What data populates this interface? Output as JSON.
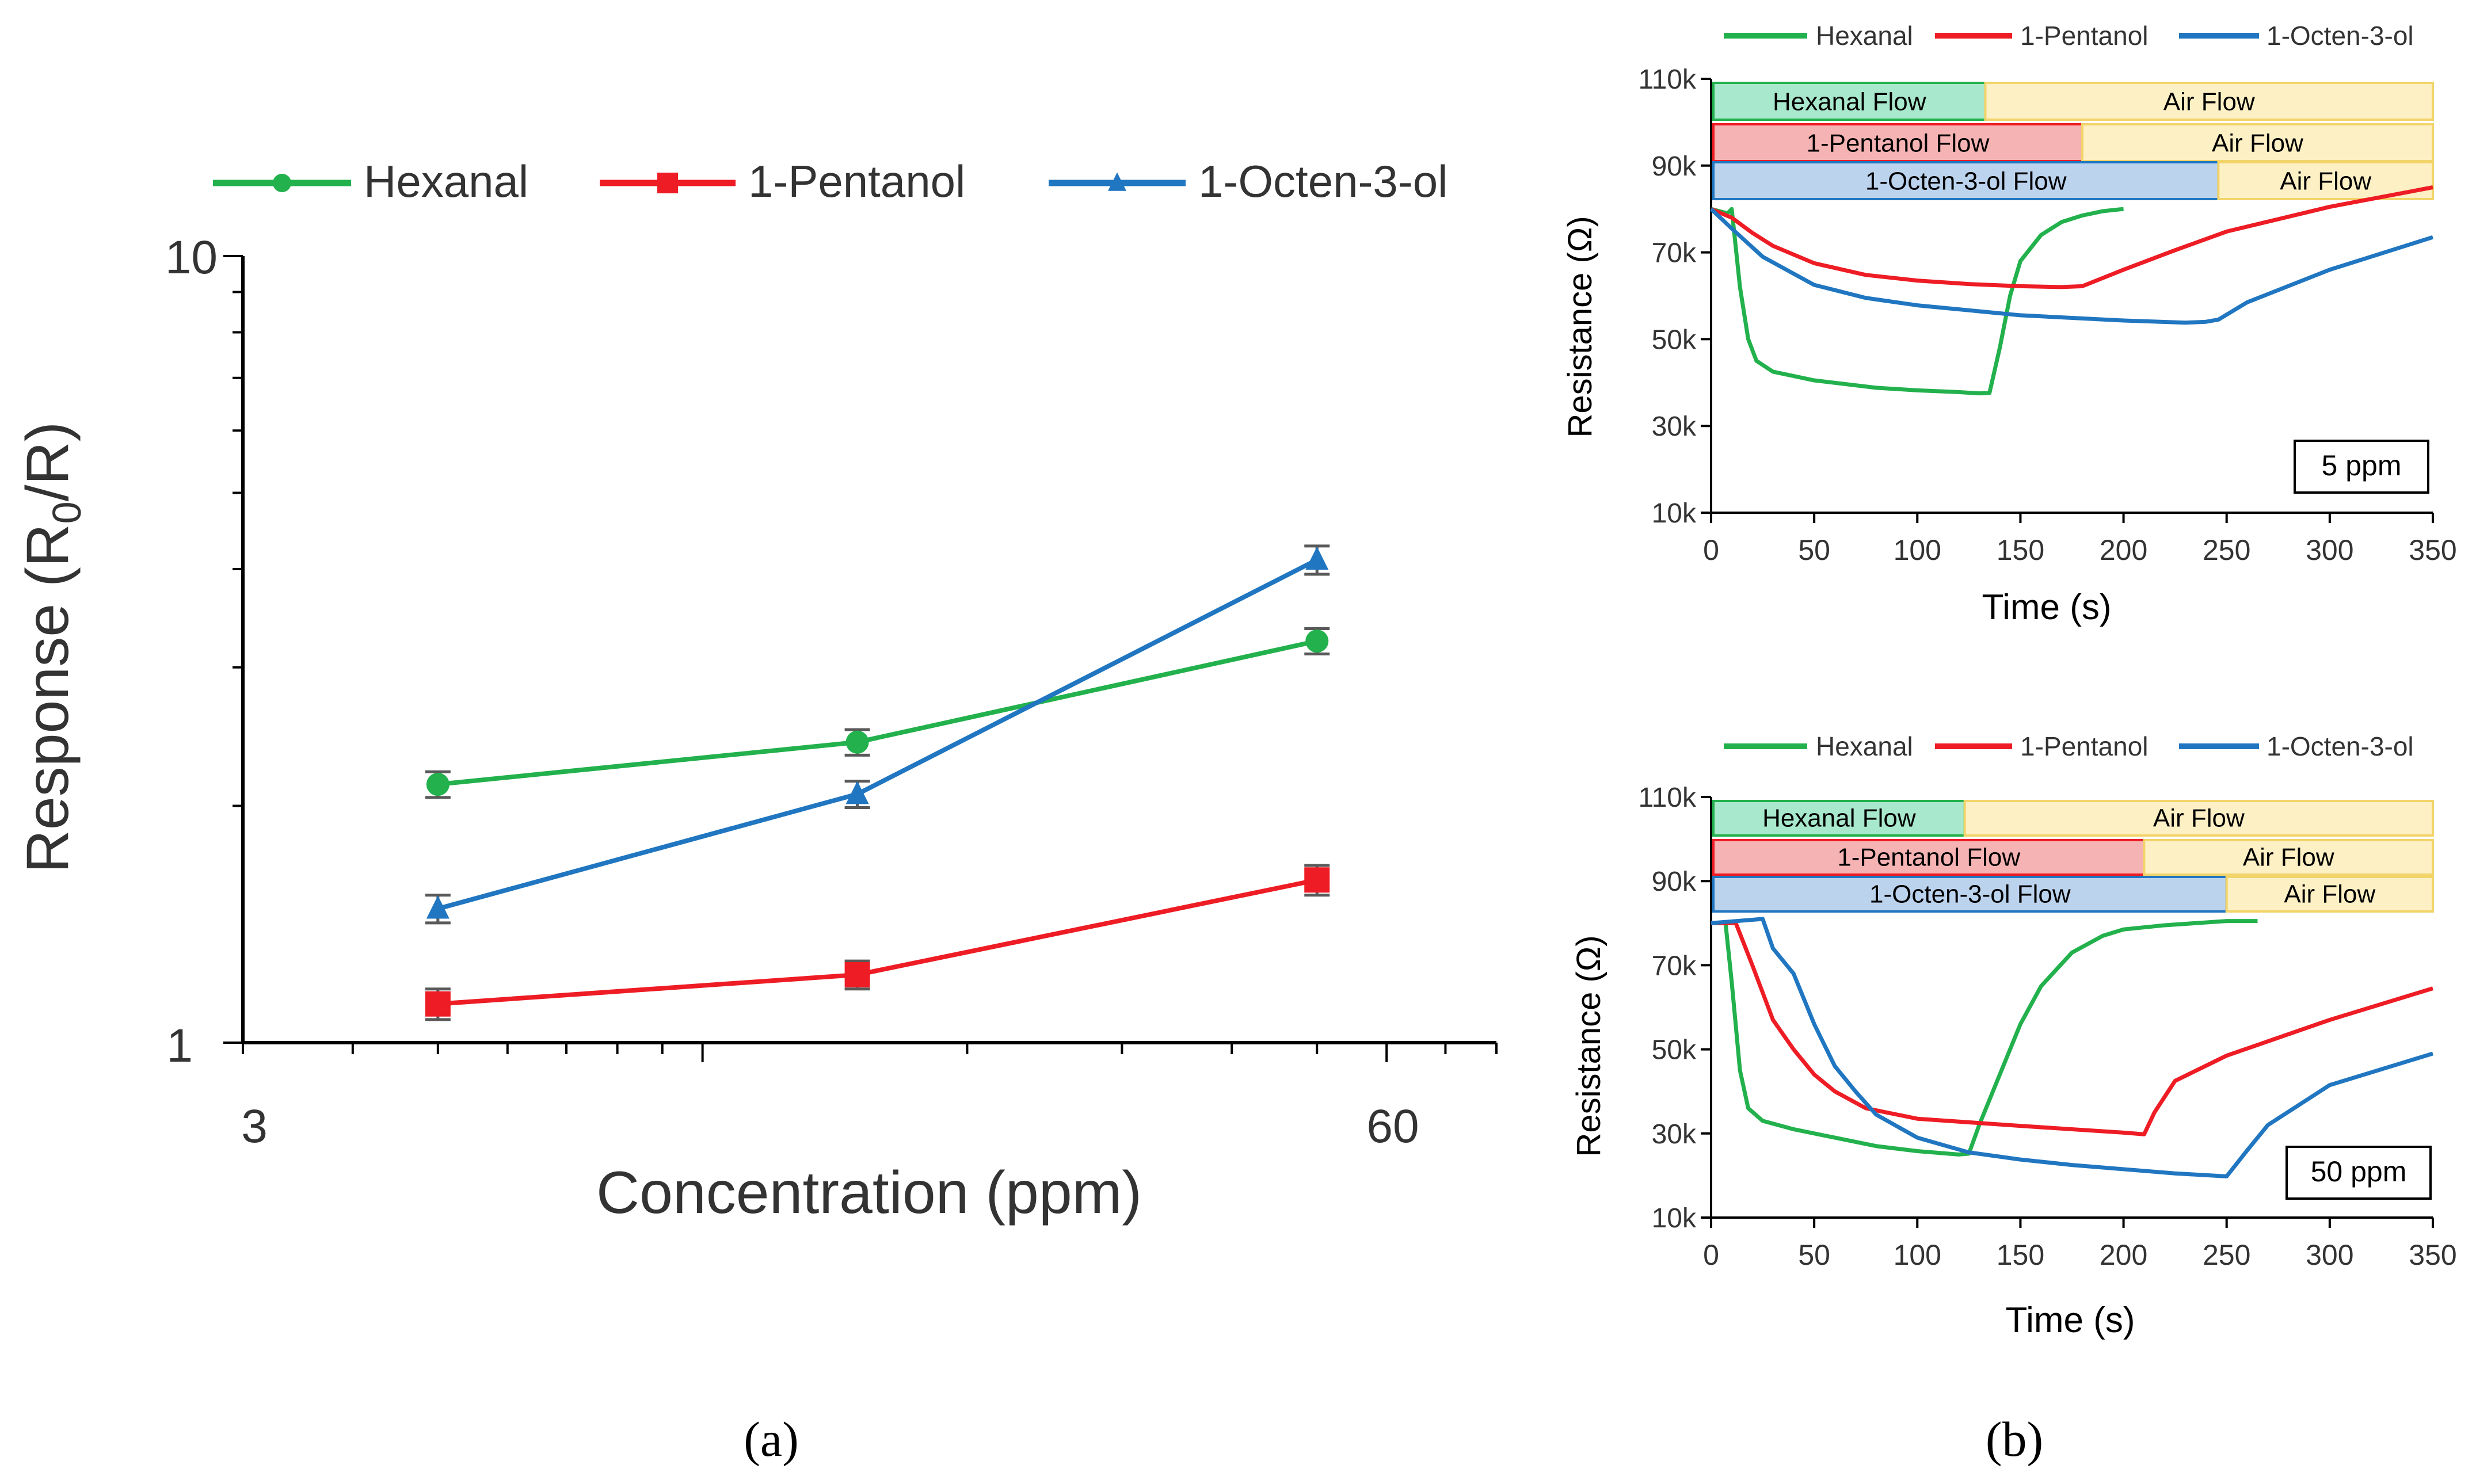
{
  "colors": {
    "hexanal": "#22b14c",
    "pentanol": "#ee1c24",
    "octenol": "#2076c0",
    "errorbar": "#595959",
    "flow_hexanal_fill": "#a8e8cc",
    "flow_pentanol_fill": "#f6b3b3",
    "flow_octenol_fill": "#bcd3ee",
    "air_fill": "#fdf0c4",
    "air_stroke": "#f2d46a"
  },
  "panel_a": {
    "caption": "(a)",
    "legend": [
      "Hexanal",
      "1-Pentanol",
      "1-Octen-3-ol"
    ],
    "ylabel_main": "Response (R",
    "ylabel_sub": "0",
    "ylabel_tail": "/R)",
    "xlabel": "Concentration (ppm)",
    "ytick_labels": [
      "10",
      "1"
    ],
    "xtick_labels": [
      "3",
      "60"
    ]
  },
  "panel_b": {
    "caption": "(b)",
    "legend": [
      "Hexanal",
      "1-Pentanol",
      "1-Octen-3-ol"
    ],
    "ylabel": "Resistance (Ω)",
    "xlabel": "Time (s)",
    "ytick_labels": [
      "110k",
      "90k",
      "70k",
      "50k",
      "30k",
      "10k"
    ],
    "xtick_labels": [
      "0",
      "50",
      "100",
      "150",
      "200",
      "250",
      "300",
      "350"
    ],
    "top": {
      "badge": "5 ppm",
      "flow_labels": [
        "Hexanal Flow",
        "1-Pentanol Flow",
        "1-Octen-3-ol Flow"
      ],
      "air_label": "Air Flow"
    },
    "bottom": {
      "badge": "50 ppm",
      "flow_labels": [
        "Hexanal Flow",
        "1-Pentanol Flow",
        "1-Octen-3-ol Flow"
      ],
      "air_label": "Air Flow"
    }
  },
  "chart_data": [
    {
      "id": "a",
      "type": "line",
      "title": "",
      "xlabel": "Concentration (ppm)",
      "ylabel": "Response (R0/R)",
      "xscale": "log",
      "yscale": "log",
      "xlim": [
        3,
        80
      ],
      "ylim": [
        1,
        10
      ],
      "legend_position": "top",
      "series": [
        {
          "name": "Hexanal",
          "marker": "circle",
          "x": [
            5,
            15,
            50
          ],
          "y": [
            2.13,
            2.41,
            3.24
          ],
          "err": [
            0.08,
            0.09,
            0.12
          ]
        },
        {
          "name": "1-Pentanol",
          "marker": "square",
          "x": [
            5,
            15,
            50
          ],
          "y": [
            1.12,
            1.22,
            1.61
          ],
          "err": [
            0.05,
            0.05,
            0.07
          ]
        },
        {
          "name": "1-Octen-3-ol",
          "marker": "triangle",
          "x": [
            5,
            15,
            50
          ],
          "y": [
            1.48,
            2.07,
            4.11
          ],
          "err": [
            0.06,
            0.08,
            0.17
          ]
        }
      ]
    },
    {
      "id": "b-top",
      "type": "line",
      "title": "5 ppm",
      "xlabel": "Time (s)",
      "ylabel": "Resistance (Ω)",
      "xlim": [
        0,
        350
      ],
      "ylim": [
        10000,
        110000
      ],
      "flows": [
        {
          "label": "Hexanal Flow",
          "start": 0,
          "end": 133,
          "air_end": 350
        },
        {
          "label": "1-Pentanol Flow",
          "start": 0,
          "end": 180,
          "air_end": 350
        },
        {
          "label": "1-Octen-3-ol Flow",
          "start": 0,
          "end": 246,
          "air_end": 350
        }
      ],
      "series": [
        {
          "name": "Hexanal",
          "x": [
            0,
            8,
            10,
            14,
            18,
            22,
            30,
            50,
            80,
            100,
            120,
            130,
            135,
            140,
            145,
            150,
            160,
            170,
            180,
            190,
            200
          ],
          "y": [
            80000,
            79000,
            80000,
            62000,
            50000,
            45000,
            42500,
            40500,
            38800,
            38200,
            37800,
            37500,
            37600,
            48000,
            60000,
            68000,
            74000,
            77000,
            78500,
            79500,
            80000
          ]
        },
        {
          "name": "1-Pentanol",
          "x": [
            0,
            10,
            20,
            30,
            50,
            75,
            100,
            125,
            150,
            170,
            180,
            200,
            225,
            250,
            300,
            350
          ],
          "y": [
            80000,
            78000,
            74500,
            71500,
            67500,
            64800,
            63500,
            62700,
            62200,
            62000,
            62200,
            66000,
            70500,
            74800,
            80500,
            85000
          ]
        },
        {
          "name": "1-Octen-3-ol",
          "x": [
            0,
            10,
            25,
            50,
            75,
            100,
            150,
            200,
            230,
            240,
            246,
            260,
            300,
            350
          ],
          "y": [
            80000,
            75500,
            69000,
            62500,
            59500,
            57800,
            55500,
            54300,
            53800,
            54000,
            54500,
            58500,
            66000,
            73500
          ]
        }
      ]
    },
    {
      "id": "b-bottom",
      "type": "line",
      "title": "50 ppm",
      "xlabel": "Time (s)",
      "ylabel": "Resistance (Ω)",
      "xlim": [
        0,
        350
      ],
      "ylim": [
        10000,
        110000
      ],
      "flows": [
        {
          "label": "Hexanal Flow",
          "start": 0,
          "end": 123,
          "air_end": 350
        },
        {
          "label": "1-Pentanol Flow",
          "start": 0,
          "end": 210,
          "air_end": 350
        },
        {
          "label": "1-Octen-3-ol Flow",
          "start": 0,
          "end": 250,
          "air_end": 350
        }
      ],
      "series": [
        {
          "name": "Hexanal",
          "x": [
            0,
            7,
            10,
            14,
            18,
            25,
            40,
            60,
            80,
            100,
            120,
            125,
            130,
            140,
            150,
            160,
            175,
            190,
            200,
            220,
            250,
            265
          ],
          "y": [
            80000,
            80000,
            66000,
            45000,
            36000,
            33000,
            31000,
            29000,
            27000,
            25800,
            25000,
            25200,
            32000,
            44000,
            56000,
            65000,
            73000,
            77000,
            78500,
            79500,
            80500,
            80500
          ]
        },
        {
          "name": "1-Pentanol",
          "x": [
            0,
            12,
            20,
            30,
            40,
            50,
            60,
            75,
            100,
            150,
            200,
            210,
            215,
            225,
            250,
            300,
            350
          ],
          "y": [
            80000,
            80000,
            70000,
            57000,
            50000,
            44000,
            40000,
            36000,
            33500,
            31800,
            30200,
            29800,
            35000,
            42500,
            48500,
            57000,
            64500
          ]
        },
        {
          "name": "1-Octen-3-ol",
          "x": [
            0,
            25,
            30,
            40,
            50,
            60,
            70,
            80,
            100,
            125,
            150,
            175,
            200,
            225,
            250,
            260,
            270,
            300,
            350
          ],
          "y": [
            80000,
            81000,
            74000,
            68000,
            56000,
            46000,
            40000,
            34500,
            29000,
            25500,
            23800,
            22500,
            21500,
            20500,
            19800,
            26000,
            32000,
            41500,
            49000
          ]
        }
      ]
    }
  ]
}
